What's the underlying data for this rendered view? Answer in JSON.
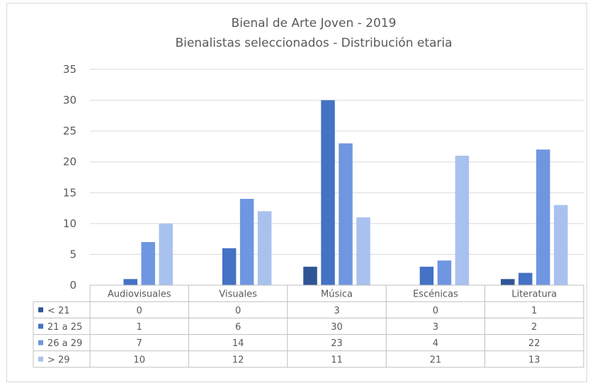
{
  "chart_data": {
    "type": "bar",
    "title": "Bienal de Arte Joven - 2019",
    "subtitle": "Bienalistas seleccionados - Distribución etaria",
    "categories": [
      "Audiovisuales",
      "Visuales",
      "Música",
      "Escénicas",
      "Literatura"
    ],
    "series": [
      {
        "name": "< 21",
        "color": "#2f5597",
        "values": [
          0,
          0,
          3,
          0,
          1
        ]
      },
      {
        "name": "21 a 25",
        "color": "#4472c4",
        "values": [
          1,
          6,
          30,
          3,
          2
        ]
      },
      {
        "name": "26 a 29",
        "color": "#6f96e0",
        "values": [
          7,
          14,
          23,
          4,
          22
        ]
      },
      {
        "name": "> 29",
        "color": "#a9c1ee",
        "values": [
          10,
          12,
          11,
          21,
          13
        ]
      }
    ],
    "ylim": [
      0,
      35
    ],
    "yticks": [
      0,
      5,
      10,
      15,
      20,
      25,
      30,
      35
    ],
    "grid": true,
    "legend": "data-table",
    "data_table": true
  }
}
